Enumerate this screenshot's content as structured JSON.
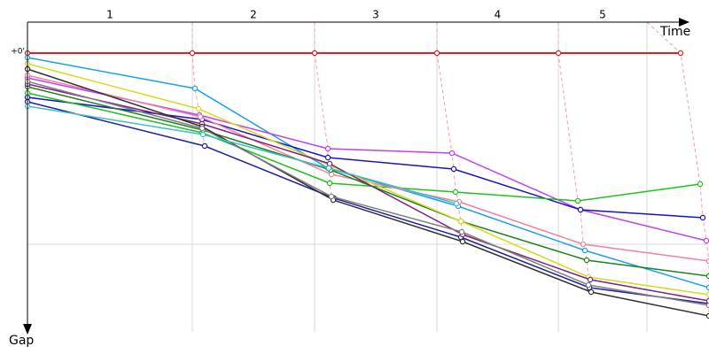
{
  "chart_data": {
    "type": "line",
    "x_label": "Time",
    "y_label": "Gap",
    "categories": [
      "1",
      "2",
      "3",
      "4",
      "5"
    ],
    "xgrid": [
      186,
      324,
      462,
      599,
      699
    ],
    "xlim": [
      0,
      770
    ],
    "ylim": [
      -35,
      315
    ],
    "yticks": [
      {
        "value": 0,
        "label": "+0'"
      }
    ],
    "ygrid": [
      216
    ],
    "series": [
      {
        "color": "#e02020",
        "x": [
          0,
          186,
          324,
          462,
          599,
          737
        ],
        "values": [
          0,
          0,
          0,
          0,
          0,
          0
        ]
      },
      {
        "color": "#1a9ff0",
        "x": [
          0,
          189,
          339,
          486,
          629,
          769
        ],
        "values": [
          5,
          40,
          130,
          173,
          223,
          265
        ]
      },
      {
        "color": "#c040f0",
        "x": [
          0,
          194,
          339,
          479,
          624,
          766
        ],
        "values": [
          28,
          70,
          108,
          113,
          177,
          212
        ]
      },
      {
        "color": "#1414c8",
        "x": [
          0,
          197,
          339,
          481,
          624,
          762
        ],
        "values": [
          50,
          75,
          118,
          131,
          177,
          186
        ]
      },
      {
        "color": "#2020a0",
        "x": [
          0,
          200,
          346,
          489,
          634,
          769
        ],
        "values": [
          55,
          105,
          164,
          208,
          265,
          283
        ]
      },
      {
        "color": "#20c020",
        "x": [
          0,
          197,
          341,
          483,
          621,
          759
        ],
        "values": [
          45,
          90,
          147,
          157,
          167,
          148
        ]
      },
      {
        "color": "#f080a0",
        "x": [
          0,
          195,
          343,
          487,
          627,
          769
        ],
        "values": [
          25,
          72,
          137,
          168,
          216,
          235
        ]
      },
      {
        "color": "#208020",
        "x": [
          0,
          198,
          342,
          489,
          631,
          769
        ],
        "values": [
          38,
          87,
          132,
          190,
          234,
          252
        ]
      },
      {
        "color": "#d8d820",
        "x": [
          0,
          193,
          341,
          489,
          633,
          769
        ],
        "values": [
          12,
          63,
          127,
          190,
          253,
          273
        ]
      },
      {
        "color": "#802080",
        "x": [
          0,
          197,
          341,
          491,
          635,
          769
        ],
        "values": [
          35,
          80,
          125,
          205,
          256,
          280
        ]
      },
      {
        "color": "#303030",
        "x": [
          0,
          197,
          345,
          491,
          636,
          769
        ],
        "values": [
          18,
          83,
          166,
          213,
          270,
          297
        ]
      },
      {
        "color": "#808080",
        "x": [
          0,
          197,
          343,
          490,
          633,
          769
        ],
        "values": [
          32,
          85,
          162,
          202,
          262,
          285
        ]
      },
      {
        "color": "#40c0c0",
        "x": [
          0,
          198,
          340,
          484
        ],
        "values": [
          60,
          92,
          130,
          170
        ]
      }
    ]
  }
}
